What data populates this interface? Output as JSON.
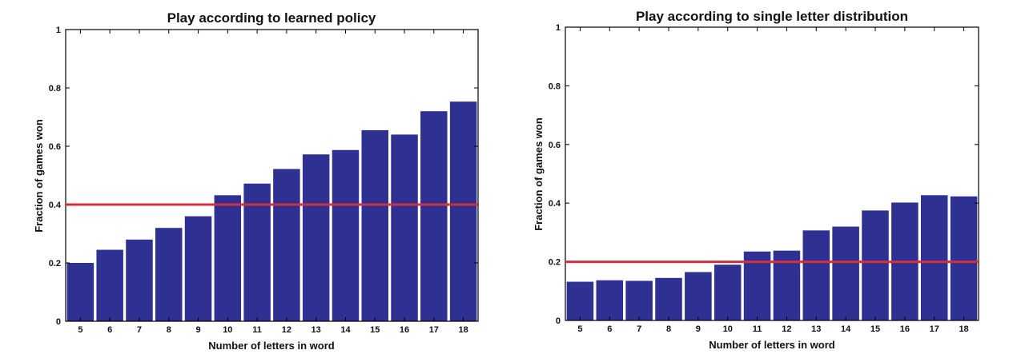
{
  "chart_data": [
    {
      "type": "bar",
      "title": "Play according to learned policy",
      "xlabel": "Number of letters in word",
      "ylabel": "Fraction of games won",
      "categories": [
        "5",
        "6",
        "7",
        "8",
        "9",
        "10",
        "11",
        "12",
        "13",
        "14",
        "15",
        "16",
        "17",
        "18"
      ],
      "values": [
        0.2,
        0.245,
        0.28,
        0.32,
        0.36,
        0.432,
        0.472,
        0.522,
        0.572,
        0.587,
        0.655,
        0.64,
        0.72,
        0.753
      ],
      "ylim": [
        0,
        1
      ],
      "yticks": [
        "0",
        "0.2",
        "0.4",
        "0.6",
        "0.8",
        "1"
      ],
      "reference_line": 0.4,
      "bar_color": "#2e3192",
      "line_color": "#d62f3a",
      "grid": false
    },
    {
      "type": "bar",
      "title": "Play according to single letter distribution",
      "xlabel": "Number of letters in word",
      "ylabel": "Fraction of games won",
      "categories": [
        "5",
        "6",
        "7",
        "8",
        "9",
        "10",
        "11",
        "12",
        "13",
        "14",
        "15",
        "16",
        "17",
        "18"
      ],
      "values": [
        0.132,
        0.137,
        0.135,
        0.145,
        0.165,
        0.19,
        0.235,
        0.238,
        0.307,
        0.32,
        0.375,
        0.402,
        0.427,
        0.423
      ],
      "ylim": [
        0,
        1
      ],
      "yticks": [
        "0",
        "0.2",
        "0.4",
        "0.6",
        "0.8",
        "1"
      ],
      "reference_line": 0.2,
      "bar_color": "#2e3192",
      "line_color": "#d62f3a",
      "grid": false
    }
  ]
}
